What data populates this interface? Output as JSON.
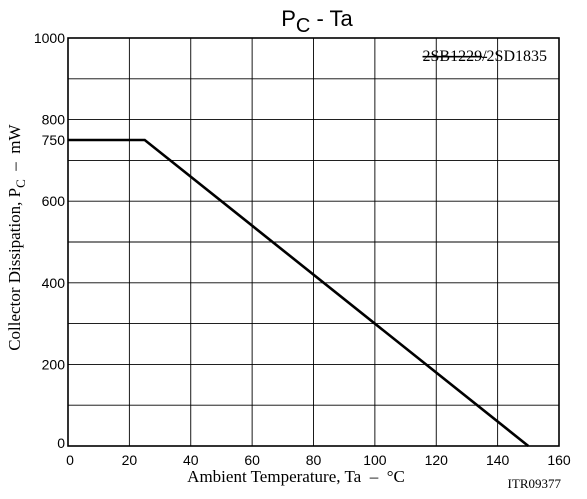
{
  "chart_data": {
    "type": "line",
    "title": {
      "main": "P",
      "sub": "C",
      "rest": " - Ta"
    },
    "xlabel": "Ambient Temperature, Ta  –  °C",
    "ylabel": {
      "main": "Collector Dissipation, P",
      "sub": "C",
      "rest": "  –  mW"
    },
    "xlim": [
      0,
      160
    ],
    "ylim": [
      0,
      1000
    ],
    "x_ticks": [
      0,
      20,
      40,
      60,
      80,
      100,
      120,
      140,
      160
    ],
    "y_ticks": [
      0,
      200,
      400,
      600,
      750,
      800,
      1000
    ],
    "x_grid": [
      0,
      20,
      40,
      60,
      80,
      100,
      120,
      140,
      160
    ],
    "y_grid": [
      0,
      100,
      200,
      300,
      400,
      500,
      600,
      700,
      800,
      900,
      1000
    ],
    "grid": true,
    "series": [
      {
        "x": [
          0,
          25,
          150
        ],
        "y": [
          750,
          750,
          0
        ]
      }
    ],
    "annotation": {
      "struck": "2SB1229",
      "slash": "/",
      "part": "2SD1835"
    },
    "figure_id": "ITR09377"
  }
}
